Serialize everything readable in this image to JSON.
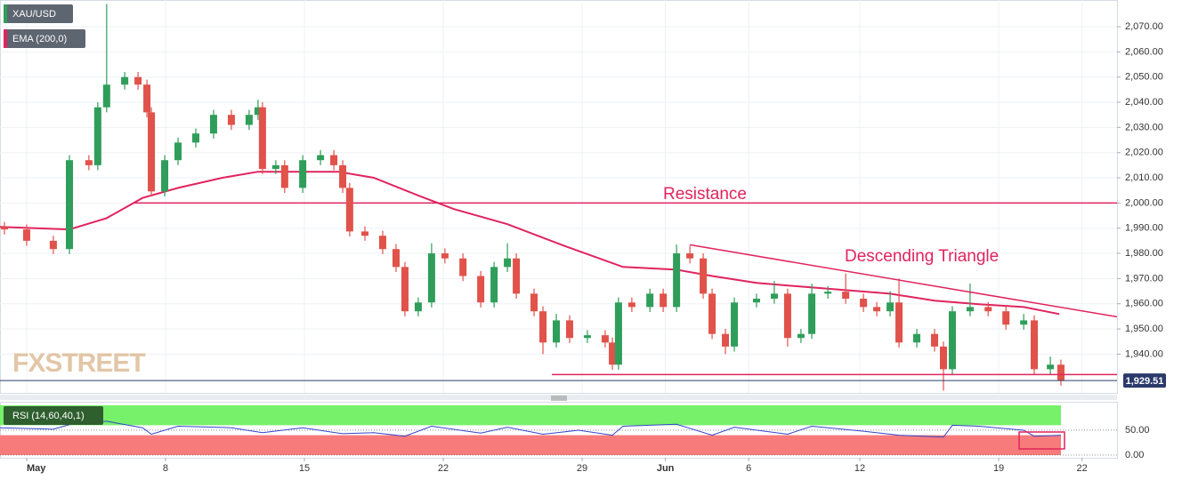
{
  "chart_data": [
    {
      "type": "candlestick",
      "legend": [
        "XAU/USD",
        "EMA (200,0)"
      ],
      "watermark": "FXSTREET",
      "up_color": "#2f9e5a",
      "down_color": "#e0524a",
      "xlim": [
        -0.96,
        39.26
      ],
      "ylim": [
        1924.6,
        2080.6
      ],
      "yticks": [
        {
          "value": 2070,
          "label": "2,070.00"
        },
        {
          "value": 2060,
          "label": "2,060.00"
        },
        {
          "value": 2050,
          "label": "2,050.00"
        },
        {
          "value": 2040,
          "label": "2,040.00"
        },
        {
          "value": 2030,
          "label": "2,030.00"
        },
        {
          "value": 2020,
          "label": "2,020.00"
        },
        {
          "value": 2010,
          "label": "2,010.00"
        },
        {
          "value": 2000,
          "label": "2,000.00"
        },
        {
          "value": 1990,
          "label": "1,990.00"
        },
        {
          "value": 1980,
          "label": "1,980.00"
        },
        {
          "value": 1970,
          "label": "1,970.00"
        },
        {
          "value": 1960,
          "label": "1,960.00"
        },
        {
          "value": 1950,
          "label": "1,950.00"
        },
        {
          "value": 1940,
          "label": "1,940.00"
        }
      ],
      "grid": true,
      "x": [
        -0.8,
        0,
        0.96,
        1.54,
        2.24,
        2.56,
        2.88,
        3.53,
        4.01,
        4.33,
        4.49,
        4.97,
        5.45,
        6.09,
        6.73,
        7.37,
        8.01,
        8.33,
        8.49,
        8.97,
        9.29,
        9.94,
        10.58,
        11.06,
        11.38,
        11.63,
        12.18,
        12.82,
        13.3,
        13.62,
        14.1,
        14.58,
        15.06,
        15.71,
        16.35,
        16.83,
        17.31,
        17.63,
        18.27,
        18.59,
        19.07,
        19.55,
        20.19,
        20.83,
        21.09,
        21.31,
        21.79,
        22.44,
        22.92,
        23.4,
        23.88,
        24.36,
        24.68,
        25.16,
        25.48,
        26.28,
        26.92,
        27.4,
        27.88,
        28.27,
        28.85,
        29.49,
        30.13,
        30.61,
        31.09,
        31.41,
        32.05,
        32.69,
        33.01,
        33.33,
        33.97,
        34.62,
        35.26,
        35.9,
        36.28,
        36.86,
        37.24
      ],
      "open": [
        1990.5,
        1989.5,
        1985,
        1981.7,
        2017,
        2015,
        2038,
        2047,
        2050,
        2047,
        2036,
        2004.6,
        2017,
        2024,
        2027.6,
        2035,
        2031,
        2035,
        2038,
        2013.5,
        2015,
        2006,
        2017,
        2019,
        2015,
        2006,
        1988.7,
        1987,
        1981.7,
        1974.6,
        1957,
        1960.5,
        1980,
        1978,
        1971,
        1960.5,
        1974.6,
        1978,
        1964,
        1957,
        1944.6,
        1953.4,
        1946.4,
        1947.5,
        1944.6,
        1935.8,
        1960.5,
        1958.7,
        1964,
        1958.7,
        1980,
        1978,
        1964,
        1948,
        1943,
        1960.5,
        1962,
        1964,
        1946.4,
        1948,
        1964,
        1964.8,
        1962,
        1958.7,
        1957,
        1960.5,
        1944.6,
        1948,
        1943,
        1934,
        1957,
        1958.7,
        1957,
        1951.7,
        1953.4,
        1934,
        1935.8
      ],
      "high": [
        1992.5,
        1991.5,
        1987,
        2019,
        2019,
        2040,
        2079,
        2052,
        2052,
        2049,
        2038,
        2019,
        2026,
        2029.6,
        2037,
        2037,
        2037,
        2041,
        2040,
        2017,
        2017,
        2019,
        2021,
        2021,
        2017,
        2008,
        1990.7,
        1989,
        1983.7,
        1976.6,
        1962.5,
        1984,
        1982,
        1980,
        1973,
        1976.6,
        1984,
        1980,
        1966,
        1959,
        1956,
        1955.4,
        1949.5,
        1949.5,
        1946.6,
        1962.5,
        1962.5,
        1966,
        1966,
        1983.5,
        1983,
        1980,
        1966,
        1950,
        1962.5,
        1964,
        1969,
        1966,
        1950,
        1968,
        1967,
        1972,
        1964,
        1960.7,
        1965,
        1970,
        1950,
        1950,
        1945,
        1959,
        1968,
        1960.7,
        1959,
        1956,
        1955.4,
        1939,
        1937.8
      ],
      "low": [
        1987.5,
        1983,
        1979.7,
        1979.7,
        2013,
        2013,
        2036,
        2045,
        2045,
        2034,
        2002.6,
        2002.6,
        2015,
        2022,
        2025.6,
        2029,
        2029,
        2033,
        2011.5,
        2011.5,
        2004,
        2004,
        2015,
        2013,
        2004,
        1986.7,
        1985,
        1979.7,
        1972.6,
        1955,
        1955,
        1958.5,
        1976,
        1969,
        1958.5,
        1958.5,
        1972.6,
        1962,
        1955,
        1940,
        1942.6,
        1944.4,
        1944.4,
        1942.6,
        1933.8,
        1933.8,
        1956.7,
        1956.7,
        1956.7,
        1956.7,
        1976,
        1962,
        1946,
        1940,
        1941,
        1958.5,
        1960,
        1943,
        1944.4,
        1946,
        1962,
        1960,
        1956.7,
        1955,
        1955,
        1942.6,
        1942.6,
        1941,
        1925.5,
        1932,
        1955,
        1955,
        1949.7,
        1949.7,
        1932,
        1932,
        1927.5
      ],
      "close": [
        1989.5,
        1985,
        1981.7,
        2017,
        2015,
        2038,
        2047,
        2050,
        2047,
        2036,
        2004.6,
        2017,
        2024,
        2027.6,
        2035,
        2031,
        2035,
        2038,
        2013.5,
        2015,
        2006,
        2017,
        2019,
        2015,
        2006,
        1988.7,
        1987,
        1981.7,
        1974.6,
        1957,
        1960.5,
        1980,
        1978,
        1971,
        1960.5,
        1974.6,
        1978,
        1964,
        1957,
        1944.6,
        1953.4,
        1946.4,
        1947.5,
        1944.6,
        1935.8,
        1960.5,
        1958.7,
        1964,
        1958.7,
        1980,
        1978,
        1964,
        1948,
        1943,
        1960.5,
        1962,
        1964,
        1946.4,
        1948,
        1964,
        1964.8,
        1962,
        1958.7,
        1957,
        1960.5,
        1944.6,
        1948,
        1943,
        1934,
        1957,
        1958.7,
        1957,
        1951.7,
        1953.4,
        1934,
        1935.8,
        1929.51
      ],
      "ema": {
        "color": "#e0245e",
        "x": [
          -0.96,
          1.54,
          2.88,
          4.17,
          5.45,
          7.05,
          8.33,
          11.22,
          12.5,
          14.1,
          15.38,
          17.31,
          19.23,
          21.47,
          23.4,
          24.68,
          26.28,
          27.88,
          29.49,
          31.09,
          32.69,
          34.29,
          35.9,
          37.18
        ],
        "values": [
          1990.5,
          1989.5,
          1994,
          2002,
          2006,
          2010,
          2012.4,
          2012.4,
          2010,
          2003,
          1997.6,
          1991.6,
          1983.5,
          1974.6,
          1973.5,
          1971,
          1968.3,
          1966.8,
          1965.4,
          1964,
          1961.2,
          1959.8,
          1958.7,
          1955.9
        ]
      },
      "resistance": {
        "label": "Resistance",
        "value": 2000,
        "x_start": 3.85,
        "color": "#e0245e"
      },
      "triangle": {
        "label": "Descending Triangle",
        "color": "#e0245e",
        "upper": {
          "x": [
            23.88,
            39.26
          ],
          "y": [
            1983.4,
            1954.8
          ]
        },
        "lower": {
          "x": [
            18.91,
            39.26
          ],
          "y": [
            1931.9,
            1931.9
          ]
        }
      },
      "last_price": {
        "value": 1929.51,
        "label": "1,929.51",
        "color": "#2b3a6b"
      }
    },
    {
      "type": "line",
      "legend": "RSI (14,60,40,1)",
      "color": "#3344cc",
      "xlim": [
        -0.96,
        39.26
      ],
      "ylim": [
        -5.4,
        107.1
      ],
      "yticks": [
        {
          "value": 50,
          "label": "50.00"
        },
        {
          "value": 0,
          "label": "0.00"
        }
      ],
      "bands": [
        {
          "from": 60,
          "to": 100,
          "color": "#77f06a"
        },
        {
          "from": 0,
          "to": 40,
          "color": "#f77b7b"
        }
      ],
      "xticks": [
        {
          "value": 0,
          "label": "May"
        },
        {
          "value": 5,
          "label": "8"
        },
        {
          "value": 10,
          "label": "15"
        },
        {
          "value": 15,
          "label": "22"
        },
        {
          "value": 20,
          "label": "29"
        },
        {
          "value": 23,
          "label": "Jun"
        },
        {
          "value": 26,
          "label": "6"
        },
        {
          "value": 30,
          "label": "12"
        },
        {
          "value": 35,
          "label": "19"
        },
        {
          "value": 38,
          "label": "22"
        }
      ],
      "x": [
        -0.96,
        0.96,
        1.6,
        2.88,
        4.17,
        4.49,
        5.45,
        7.37,
        8.49,
        9.94,
        11.38,
        12.5,
        13.62,
        14.58,
        16.35,
        17.31,
        18.59,
        19.87,
        21.09,
        21.47,
        23.4,
        24.68,
        25.48,
        27.4,
        28.27,
        30.13,
        31.41,
        33.01,
        33.33,
        34.29,
        35.9,
        36.28,
        37.24
      ],
      "values": [
        55,
        52,
        62,
        68,
        55,
        42,
        58,
        55,
        45,
        55,
        43,
        45,
        38,
        58,
        44,
        56,
        42,
        50,
        40,
        58,
        62,
        40,
        56,
        42,
        58,
        48,
        40,
        36,
        60,
        58,
        50,
        38,
        40
      ]
    }
  ]
}
